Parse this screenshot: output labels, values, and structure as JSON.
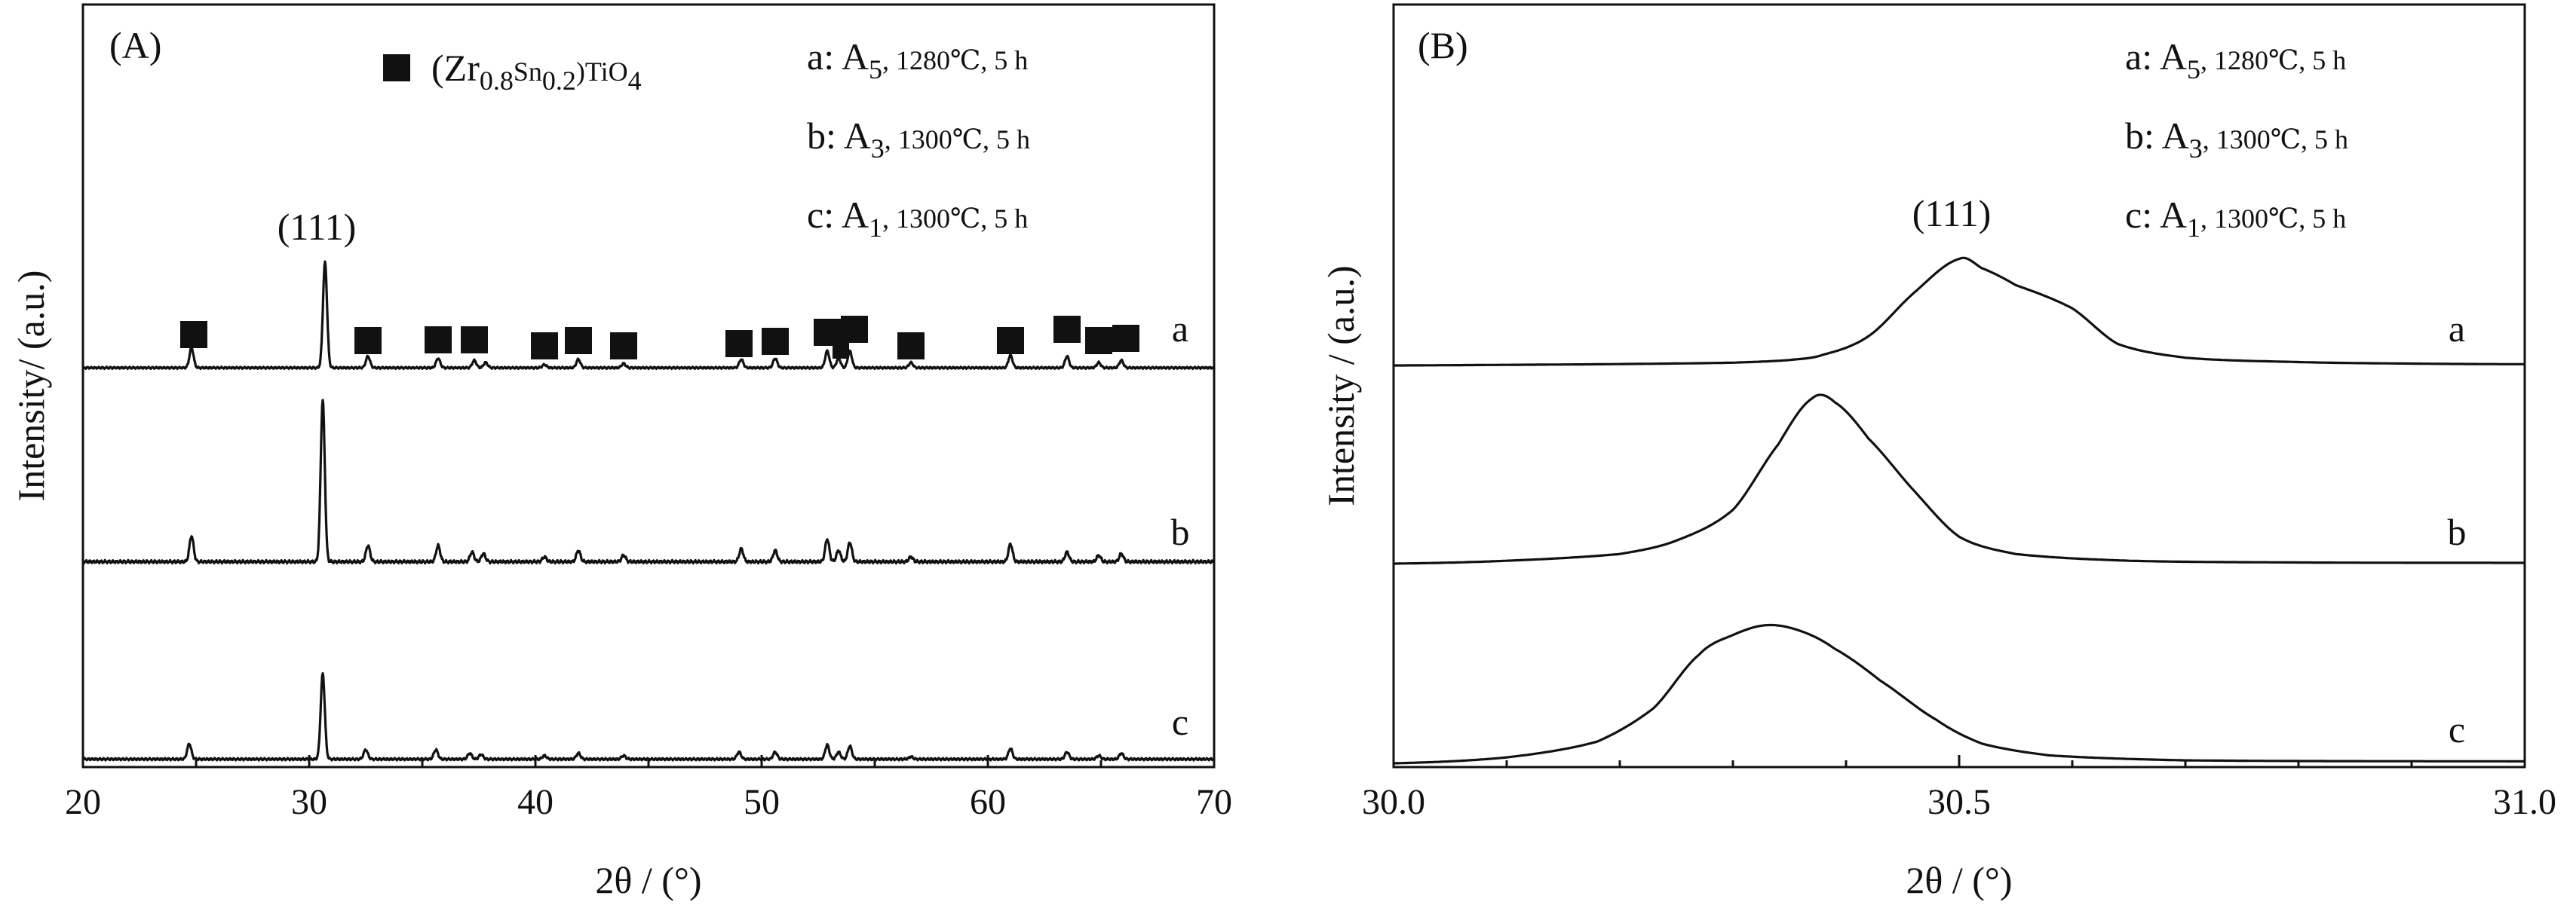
{
  "chart_data": [
    {
      "panel_label": "(A)",
      "type": "line",
      "xlabel": "2θ / (°)",
      "ylabel": "Intensity/ (a.u.)",
      "xlim": [
        20,
        70
      ],
      "xticks": [
        20,
        30,
        40,
        50,
        60,
        70
      ],
      "legend_marker_label": "(Zr0.8Sn0.2)TiO4",
      "legend_marker_parts": {
        "a": "(Zr",
        "b": "0.8",
        "c": "Sn",
        "d": "0.2",
        "e": ")TiO",
        "f": "4"
      },
      "conditions": [
        {
          "a": "a: A",
          "b": "5",
          "c": ", 1280℃, 5 h"
        },
        {
          "a": "b: A",
          "b": "3",
          "c": ", 1300℃, 5 h"
        },
        {
          "a": "c: A",
          "b": "1",
          "c": ", 1300℃, 5 h"
        }
      ],
      "peak_label": "(111)",
      "peak_label_x": 30.6,
      "marker_positions": [
        24.9,
        32.6,
        35.7,
        37.3,
        40.4,
        41.9,
        43.9,
        49.0,
        50.6,
        52.9,
        53.5,
        54.1,
        56.6,
        61.0,
        63.5,
        64.9,
        66.1
      ],
      "series": [
        {
          "name": "a",
          "baseline": 0.035,
          "peaks": [
            {
              "x": 24.8,
              "h": 0.19
            },
            {
              "x": 30.7,
              "h": 1.0
            },
            {
              "x": 32.6,
              "h": 0.11
            },
            {
              "x": 35.7,
              "h": 0.09
            },
            {
              "x": 37.3,
              "h": 0.07
            },
            {
              "x": 37.8,
              "h": 0.05
            },
            {
              "x": 40.4,
              "h": 0.03
            },
            {
              "x": 41.9,
              "h": 0.08
            },
            {
              "x": 43.9,
              "h": 0.04
            },
            {
              "x": 49.1,
              "h": 0.08
            },
            {
              "x": 50.6,
              "h": 0.09
            },
            {
              "x": 52.9,
              "h": 0.16
            },
            {
              "x": 53.4,
              "h": 0.09
            },
            {
              "x": 53.9,
              "h": 0.16
            },
            {
              "x": 56.6,
              "h": 0.05
            },
            {
              "x": 61.0,
              "h": 0.12
            },
            {
              "x": 63.5,
              "h": 0.11
            },
            {
              "x": 64.9,
              "h": 0.05
            },
            {
              "x": 65.9,
              "h": 0.07
            }
          ]
        },
        {
          "name": "b",
          "baseline": 0.035,
          "peaks": [
            {
              "x": 24.8,
              "h": 0.16
            },
            {
              "x": 30.6,
              "h": 1.0
            },
            {
              "x": 32.6,
              "h": 0.1
            },
            {
              "x": 35.7,
              "h": 0.1
            },
            {
              "x": 37.2,
              "h": 0.06
            },
            {
              "x": 37.7,
              "h": 0.05
            },
            {
              "x": 40.4,
              "h": 0.03
            },
            {
              "x": 41.9,
              "h": 0.07
            },
            {
              "x": 43.9,
              "h": 0.04
            },
            {
              "x": 49.1,
              "h": 0.08
            },
            {
              "x": 50.6,
              "h": 0.07
            },
            {
              "x": 52.9,
              "h": 0.14
            },
            {
              "x": 53.4,
              "h": 0.07
            },
            {
              "x": 53.9,
              "h": 0.12
            },
            {
              "x": 56.6,
              "h": 0.03
            },
            {
              "x": 61.0,
              "h": 0.11
            },
            {
              "x": 63.5,
              "h": 0.06
            },
            {
              "x": 64.9,
              "h": 0.04
            },
            {
              "x": 65.9,
              "h": 0.05
            }
          ]
        },
        {
          "name": "c",
          "baseline": 0.035,
          "peaks": [
            {
              "x": 24.7,
              "h": 0.13
            },
            {
              "x": 30.6,
              "h": 0.72
            },
            {
              "x": 32.5,
              "h": 0.08
            },
            {
              "x": 35.6,
              "h": 0.08
            },
            {
              "x": 37.1,
              "h": 0.05
            },
            {
              "x": 37.6,
              "h": 0.04
            },
            {
              "x": 40.4,
              "h": 0.03
            },
            {
              "x": 41.9,
              "h": 0.05
            },
            {
              "x": 43.9,
              "h": 0.03
            },
            {
              "x": 49.0,
              "h": 0.06
            },
            {
              "x": 50.6,
              "h": 0.06
            },
            {
              "x": 52.9,
              "h": 0.12
            },
            {
              "x": 53.4,
              "h": 0.06
            },
            {
              "x": 53.9,
              "h": 0.11
            },
            {
              "x": 56.6,
              "h": 0.02
            },
            {
              "x": 61.0,
              "h": 0.09
            },
            {
              "x": 63.5,
              "h": 0.06
            },
            {
              "x": 64.9,
              "h": 0.03
            },
            {
              "x": 65.9,
              "h": 0.05
            }
          ]
        }
      ]
    },
    {
      "panel_label": "(B)",
      "type": "line",
      "xlabel": "2θ / (°)",
      "ylabel": "Intensity / (a.u.)",
      "xlim": [
        30.0,
        31.0
      ],
      "xticks": [
        "30.0",
        "30.5",
        "31.0"
      ],
      "conditions": [
        {
          "a": "a: A",
          "b": "5",
          "c": ", 1280℃, 5 h"
        },
        {
          "a": "b: A",
          "b": "3",
          "c": ", 1300℃, 5 h"
        },
        {
          "a": "c: A",
          "b": "1",
          "c": ", 1300℃, 5 h"
        }
      ],
      "peak_label": "(111)",
      "peak_label_x": 30.5,
      "series": [
        {
          "name": "a",
          "points": [
            [
              30.0,
              0.0
            ],
            [
              30.1,
              0.004
            ],
            [
              30.2,
              0.009
            ],
            [
              30.3,
              0.018
            ],
            [
              30.35,
              0.035
            ],
            [
              30.38,
              0.07
            ],
            [
              30.42,
              0.19
            ],
            [
              30.46,
              0.47
            ],
            [
              30.5,
              0.69
            ],
            [
              30.52,
              0.63
            ],
            [
              30.55,
              0.52
            ],
            [
              30.6,
              0.37
            ],
            [
              30.64,
              0.14
            ],
            [
              30.7,
              0.05
            ],
            [
              30.8,
              0.022
            ],
            [
              30.9,
              0.012
            ],
            [
              31.0,
              0.008
            ]
          ]
        },
        {
          "name": "b",
          "points": [
            [
              30.0,
              0.0
            ],
            [
              30.1,
              0.015
            ],
            [
              30.2,
              0.05
            ],
            [
              30.25,
              0.12
            ],
            [
              30.3,
              0.28
            ],
            [
              30.34,
              0.62
            ],
            [
              30.37,
              0.86
            ],
            [
              30.39,
              0.84
            ],
            [
              30.42,
              0.65
            ],
            [
              30.46,
              0.38
            ],
            [
              30.5,
              0.14
            ],
            [
              30.55,
              0.05
            ],
            [
              30.65,
              0.015
            ],
            [
              30.8,
              0.006
            ],
            [
              31.0,
              0.004
            ]
          ]
        },
        {
          "name": "c",
          "points": [
            [
              30.0,
              0.0
            ],
            [
              30.1,
              0.03
            ],
            [
              30.18,
              0.11
            ],
            [
              30.23,
              0.28
            ],
            [
              30.27,
              0.55
            ],
            [
              30.3,
              0.65
            ],
            [
              30.33,
              0.7
            ],
            [
              30.36,
              0.67
            ],
            [
              30.39,
              0.58
            ],
            [
              30.43,
              0.42
            ],
            [
              30.48,
              0.22
            ],
            [
              30.52,
              0.1
            ],
            [
              30.58,
              0.04
            ],
            [
              30.7,
              0.015
            ],
            [
              31.0,
              0.01
            ]
          ]
        }
      ]
    }
  ]
}
